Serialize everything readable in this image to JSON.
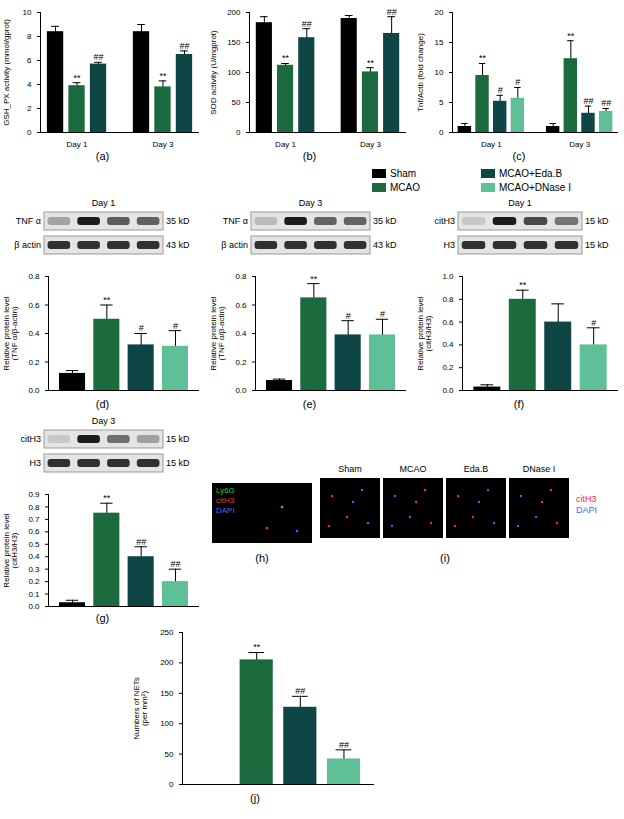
{
  "chart_data": [
    {
      "type": "bar",
      "title": "(a)",
      "y_label": "GSH_PX activity (mmol/gprot)",
      "categories": [
        "Day 1",
        "Day 3"
      ],
      "series": [
        {
          "name": "Sham",
          "color": "#000000",
          "values": [
            8.4,
            8.4
          ],
          "errors": [
            0.45,
            0.6
          ]
        },
        {
          "name": "MCAO",
          "color": "#1b6b3f",
          "values": [
            3.9,
            3.8
          ],
          "errors": [
            0.25,
            0.5
          ],
          "significance": [
            "**",
            "**"
          ]
        },
        {
          "name": "MCAO+Eda.B",
          "color": "#0d4645",
          "values": [
            5.7,
            6.5
          ],
          "errors": [
            0.15,
            0.3
          ],
          "significance": [
            "##",
            "##"
          ]
        }
      ],
      "ylim": [
        0,
        10
      ],
      "yticks": [
        0,
        2,
        4,
        6,
        8,
        10
      ]
    },
    {
      "type": "bar",
      "title": "(b)",
      "y_label": "SOD activity (U/mgprot)",
      "categories": [
        "Day 1",
        "Day 3"
      ],
      "series": [
        {
          "name": "Sham",
          "color": "#000000",
          "values": [
            183,
            190
          ],
          "errors": [
            10,
            5
          ]
        },
        {
          "name": "MCAO",
          "color": "#1b6b3f",
          "values": [
            112,
            101
          ],
          "errors": [
            3,
            7
          ],
          "significance": [
            "**",
            "**"
          ]
        },
        {
          "name": "MCAO+Eda.B",
          "color": "#0d4645",
          "values": [
            158,
            165
          ],
          "errors": [
            15,
            28
          ],
          "significance": [
            "##",
            "##"
          ]
        }
      ],
      "ylim": [
        0,
        200
      ],
      "yticks": [
        0,
        50,
        100,
        150,
        200
      ]
    },
    {
      "type": "bar",
      "title": "(c)",
      "y_label": "Tnf/Actb (fold change)",
      "categories": [
        "Day 1",
        "Day 3"
      ],
      "series": [
        {
          "name": "Sham",
          "color": "#000000",
          "values": [
            1,
            1
          ],
          "errors": [
            0.5,
            0.5
          ]
        },
        {
          "name": "MCAO",
          "color": "#1b6b3f",
          "values": [
            9.5,
            12.3
          ],
          "errors": [
            2,
            3
          ],
          "significance": [
            "**",
            "**"
          ]
        },
        {
          "name": "MCAO+Eda.B",
          "color": "#0d4645",
          "values": [
            5.2,
            3.2
          ],
          "errors": [
            1,
            1.2
          ],
          "significance": [
            "#",
            "##"
          ]
        },
        {
          "name": "MCAO+DNase I",
          "color": "#5fbf97",
          "values": [
            5.7,
            3.5
          ],
          "errors": [
            1.8,
            0.5
          ],
          "significance": [
            "#",
            "##"
          ]
        }
      ],
      "ylim": [
        0,
        20
      ],
      "yticks": [
        0,
        5,
        10,
        15,
        20
      ],
      "legend": "bottom"
    },
    {
      "type": "bar",
      "title": "(d)",
      "y_label": "Relative protein level\n(TNF α/β-actin)",
      "blot": {
        "title": "Day 1",
        "rows": [
          {
            "label": "TNF α",
            "size": "35 kD"
          },
          {
            "label": "β actin",
            "size": "43 kD"
          }
        ]
      },
      "categories": [
        null,
        null,
        null,
        null
      ],
      "values": [
        0.12,
        0.5,
        0.32,
        0.31
      ],
      "errors": [
        0.02,
        0.1,
        0.08,
        0.11
      ],
      "significance": [
        null,
        "**",
        "#",
        "#"
      ],
      "colors": [
        "#000000",
        "#1b6b3f",
        "#0d4645",
        "#5fbf97"
      ],
      "ylim": [
        0,
        0.8
      ],
      "yticks": [
        {
          "value": 0,
          "label": "0.0"
        },
        {
          "value": 0.2,
          "label": "0.2"
        },
        {
          "value": 0.4,
          "label": "0.4"
        },
        {
          "value": 0.6,
          "label": "0.6"
        },
        {
          "value": 0.8,
          "label": "0.8"
        }
      ],
      "tick_labels": "y"
    },
    {
      "type": "bar",
      "title": "(e)",
      "y_label": "Relative protein level\n(TNF α/β-actin)",
      "blot": {
        "title": "Day 3",
        "rows": [
          {
            "label": "TNF α",
            "size": "35 kD"
          },
          {
            "label": "β actin",
            "size": "43 kD"
          }
        ]
      },
      "categories": [
        null,
        null,
        null,
        null
      ],
      "values": [
        0.07,
        0.65,
        0.39,
        0.39
      ],
      "errors": [
        0.01,
        0.1,
        0.1,
        0.11
      ],
      "significance": [
        null,
        "**",
        "#",
        "#"
      ],
      "colors": [
        "#000000",
        "#1b6b3f",
        "#0d4645",
        "#5fbf97"
      ],
      "ylim": [
        0,
        0.8
      ],
      "yticks": [
        {
          "value": 0,
          "label": "0.0"
        },
        {
          "value": 0.2,
          "label": "0.2"
        },
        {
          "value": 0.4,
          "label": "0.4"
        },
        {
          "value": 0.6,
          "label": "0.6"
        },
        {
          "value": 0.8,
          "label": "0.8"
        }
      ],
      "tick_labels": "y"
    },
    {
      "type": "bar",
      "title": "(f)",
      "y_label": "Relative protein level\n(citH3/H3)",
      "blot": {
        "title": "Day 1",
        "rows": [
          {
            "label": "citH3",
            "size": "15 kD"
          },
          {
            "label": "H3",
            "size": "15 kD"
          }
        ]
      },
      "categories": [
        null,
        null,
        null,
        null
      ],
      "values": [
        0.03,
        0.8,
        0.6,
        0.4
      ],
      "errors": [
        0.02,
        0.08,
        0.16,
        0.15
      ],
      "significance": [
        null,
        "**",
        null,
        "#"
      ],
      "colors": [
        "#000000",
        "#1b6b3f",
        "#0d4645",
        "#5fbf97"
      ],
      "ylim": [
        0,
        1
      ],
      "yticks": [
        {
          "value": 0,
          "label": "0.0"
        },
        {
          "value": 0.2,
          "label": "0.2"
        },
        {
          "value": 0.4,
          "label": "0.4"
        },
        {
          "value": 0.6,
          "label": "0.6"
        },
        {
          "value": 0.8,
          "label": "0.8"
        },
        {
          "value": 1,
          "label": "1.0"
        }
      ],
      "tick_labels": "y"
    },
    {
      "type": "bar",
      "title": "(g)",
      "y_label": "Relative protein level\n(citH3/H3)",
      "blot": {
        "title": "Day 3",
        "rows": [
          {
            "label": "citH3",
            "size": "15 kD"
          },
          {
            "label": "H3",
            "size": "15 kD"
          }
        ]
      },
      "categories": [
        null,
        null,
        null,
        null
      ],
      "values": [
        0.03,
        0.75,
        0.4,
        0.2
      ],
      "errors": [
        0.02,
        0.08,
        0.08,
        0.1
      ],
      "significance": [
        null,
        "**",
        "##",
        "##"
      ],
      "colors": [
        "#000000",
        "#1b6b3f",
        "#0d4645",
        "#5fbf97"
      ],
      "ylim": [
        0,
        0.9
      ],
      "yticks": [
        {
          "value": 0,
          "label": "0.0"
        },
        {
          "value": 0.1,
          "label": "0.1"
        },
        {
          "value": 0.2,
          "label": "0.2"
        },
        {
          "value": 0.3,
          "label": "0.3"
        },
        {
          "value": 0.4,
          "label": "0.4"
        },
        {
          "value": 0.5,
          "label": "0.5"
        },
        {
          "value": 0.6,
          "label": "0.6"
        },
        {
          "value": 0.7,
          "label": "0.7"
        },
        {
          "value": 0.8,
          "label": "0.8"
        },
        {
          "value": 0.9,
          "label": "0.9"
        }
      ],
      "tick_labels": "y"
    },
    {
      "type": "bar",
      "title": "(j)",
      "y_label": "Numbers of NETs\n(per mm²)",
      "categories": [
        null,
        null,
        null,
        null
      ],
      "values": [
        0,
        205,
        127,
        42
      ],
      "errors": [
        0,
        12,
        18,
        15
      ],
      "significance": [
        null,
        "**",
        "##",
        "##"
      ],
      "colors": [
        "#000000",
        "#1b6b3f",
        "#0d4645",
        "#5fbf97"
      ],
      "ylim": [
        0,
        250
      ],
      "yticks": [
        0,
        50,
        100,
        150,
        200,
        250
      ],
      "tick_labels": "y"
    }
  ],
  "images": [
    {
      "title": "(h)",
      "channels": [
        {
          "name": "Ly6G",
          "color": "#2ecc40"
        },
        {
          "name": "citH3",
          "color": "#ff2a2a"
        },
        {
          "name": "DAPI",
          "color": "#4a62ff"
        }
      ]
    },
    {
      "title": "(i)",
      "columns": [
        "Sham",
        "MCAO",
        "Eda.B",
        "DNase I"
      ],
      "channels": [
        {
          "name": "citH3",
          "color": "#ff2a2a"
        },
        {
          "name": "DAPI",
          "color": "#4a62ff"
        }
      ]
    }
  ]
}
